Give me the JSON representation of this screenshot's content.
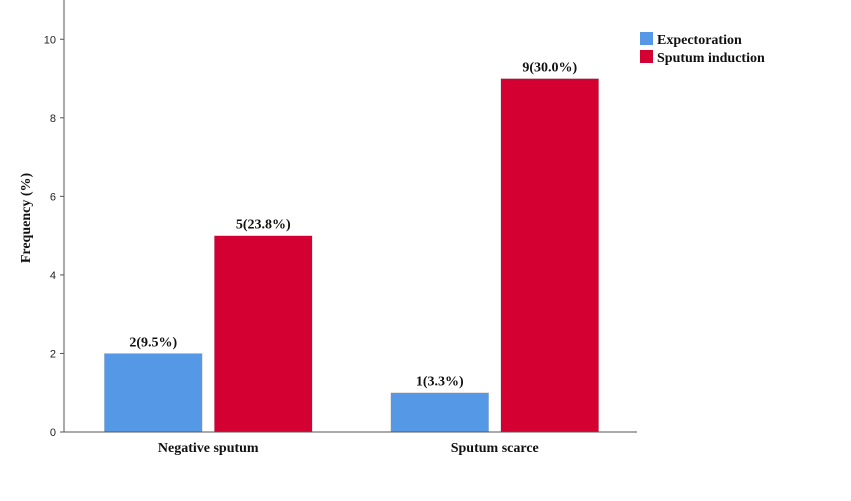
{
  "chart_data": {
    "type": "bar",
    "title": "",
    "xlabel": "",
    "ylabel": "Frequency (%)",
    "ylim": [
      0,
      11
    ],
    "yticks": [
      0,
      2,
      4,
      6,
      8,
      10
    ],
    "grid": false,
    "legend_position": "top-right",
    "categories": [
      "Negative sputum",
      "Sputum scarce"
    ],
    "series": [
      {
        "name": "Expectoration",
        "color": "#5599e6",
        "values": [
          2,
          1
        ],
        "labels": [
          "2(9.5%)",
          "1(3.3%)"
        ]
      },
      {
        "name": "Sputum induction",
        "color": "#d30031",
        "values": [
          5,
          9
        ],
        "labels": [
          "5(23.8%)",
          "9(30.0%)"
        ]
      }
    ]
  }
}
